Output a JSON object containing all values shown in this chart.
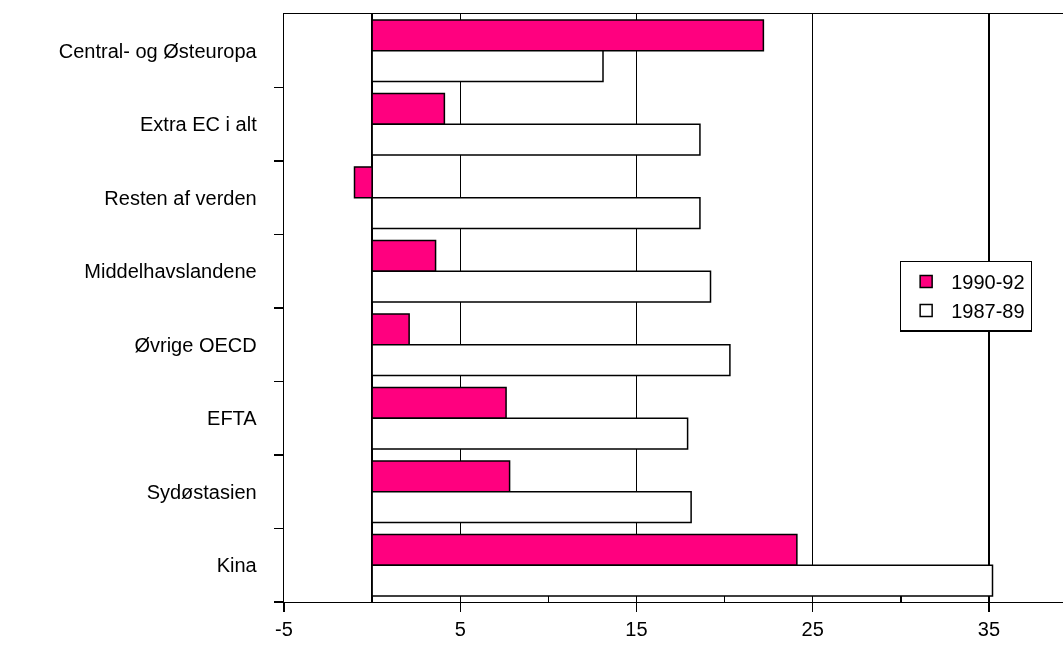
{
  "chart_data": {
    "type": "bar",
    "orientation": "horizontal",
    "categories": [
      "Central- og Østeuropa",
      "Extra EC i alt",
      "Resten af verden",
      "Middelhavslandene",
      "Øvrige OECD",
      "EFTA",
      "Sydøstasien",
      "Kina"
    ],
    "series": [
      {
        "name": "1990-92",
        "color": "#ff007f",
        "values": [
          22.2,
          4.1,
          -1,
          3.6,
          2.1,
          7.6,
          7.8,
          24.1
        ]
      },
      {
        "name": "1987-89",
        "color": "#ffffff",
        "values": [
          13.1,
          18.6,
          18.6,
          19.2,
          20.3,
          17.9,
          18.1,
          35.2
        ]
      }
    ],
    "xlim": [
      -5,
      39.2
    ],
    "xticks": [
      -5,
      {
        "value": 0,
        "label": null
      },
      5,
      {
        "value": 10,
        "label": null
      },
      15,
      {
        "value": 20,
        "label": null
      },
      25,
      {
        "value": 30,
        "label": null
      },
      35
    ],
    "grid": "x",
    "legend": "right"
  }
}
